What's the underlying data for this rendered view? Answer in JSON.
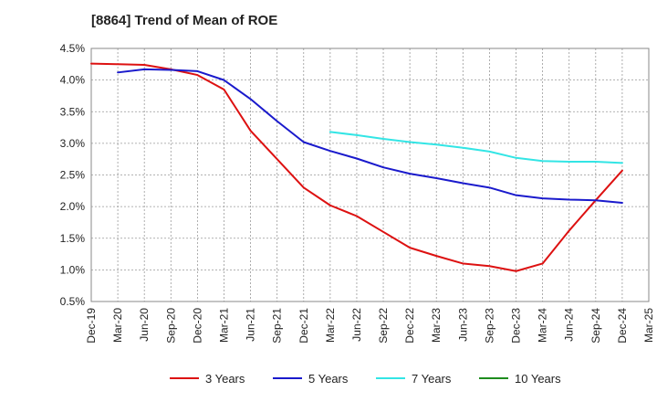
{
  "chart_data": {
    "type": "line",
    "title": "[8864]  Trend of Mean of ROE",
    "xlabel": "",
    "ylabel": "",
    "ylim": [
      0.5,
      4.5
    ],
    "y_ticks": [
      "0.5%",
      "1.0%",
      "1.5%",
      "2.0%",
      "2.5%",
      "3.0%",
      "3.5%",
      "4.0%",
      "4.5%"
    ],
    "x_ticks": [
      "Dec-19",
      "Mar-20",
      "Jun-20",
      "Sep-20",
      "Dec-20",
      "Mar-21",
      "Jun-21",
      "Sep-21",
      "Dec-21",
      "Mar-22",
      "Jun-22",
      "Sep-22",
      "Dec-22",
      "Mar-23",
      "Jun-23",
      "Sep-23",
      "Dec-23",
      "Mar-24",
      "Jun-24",
      "Sep-24",
      "Dec-24",
      "Mar-25"
    ],
    "grid": true,
    "legend_position": "bottom",
    "series": [
      {
        "name": "3 Years",
        "color": "#dd1111",
        "values": [
          4.26,
          4.25,
          4.24,
          4.17,
          4.08,
          3.85,
          3.2,
          2.75,
          2.3,
          2.02,
          1.85,
          1.6,
          1.35,
          1.22,
          1.1,
          1.06,
          0.98,
          1.1,
          1.62,
          2.1,
          2.57,
          null
        ]
      },
      {
        "name": "5 Years",
        "color": "#1a1acc",
        "values": [
          null,
          4.12,
          4.17,
          4.16,
          4.14,
          4.0,
          3.7,
          3.35,
          3.02,
          2.88,
          2.76,
          2.62,
          2.52,
          2.45,
          2.37,
          2.3,
          2.18,
          2.13,
          2.11,
          2.1,
          2.06,
          null
        ]
      },
      {
        "name": "7 Years",
        "color": "#33e5e5",
        "values": [
          null,
          null,
          null,
          null,
          null,
          null,
          null,
          null,
          null,
          3.18,
          3.13,
          3.07,
          3.02,
          2.98,
          2.93,
          2.87,
          2.77,
          2.72,
          2.71,
          2.71,
          2.69,
          null
        ]
      },
      {
        "name": "10 Years",
        "color": "#1e8c1e",
        "values": [
          null,
          null,
          null,
          null,
          null,
          null,
          null,
          null,
          null,
          null,
          null,
          null,
          null,
          null,
          null,
          null,
          null,
          null,
          null,
          null,
          null,
          null
        ]
      }
    ]
  }
}
